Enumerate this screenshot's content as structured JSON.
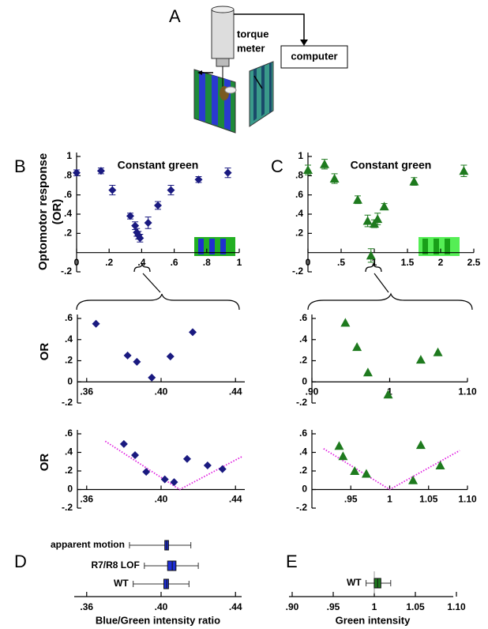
{
  "figure_a": {
    "label": "A",
    "torque": [
      "torque",
      "meter"
    ],
    "computer": "computer"
  },
  "chart_data": [
    {
      "type": "scatter",
      "panel": "B",
      "title": "Constant green",
      "ylabel": [
        "Optomotor response",
        "(OR)"
      ],
      "marker": "diamond",
      "color": "#1a1a80",
      "x": [
        0,
        0.15,
        0.22,
        0.33,
        0.36,
        0.37,
        0.38,
        0.39,
        0.44,
        0.5,
        0.58,
        0.75,
        0.93
      ],
      "values": [
        0.83,
        0.85,
        0.65,
        0.38,
        0.28,
        0.21,
        0.18,
        0.15,
        0.31,
        0.49,
        0.65,
        0.76,
        0.83
      ],
      "errors": [
        0.03,
        0.03,
        0.05,
        0.03,
        0.04,
        0.04,
        0.04,
        0.04,
        0.06,
        0.04,
        0.05,
        0.03,
        0.05
      ],
      "xlim": [
        0,
        1
      ],
      "xticks": [
        0,
        {
          "value": 0.2,
          "label": ".2"
        },
        {
          "value": 0.4,
          "label": ".4"
        },
        {
          "value": 0.6,
          "label": ".6"
        },
        {
          "value": 0.8,
          "label": ".8"
        },
        1
      ],
      "ylim": [
        -0.2,
        1
      ],
      "yticks": [
        1,
        {
          "value": 0.8,
          "label": ".8"
        },
        {
          "value": 0.6,
          "label": ".6"
        },
        {
          "value": 0.4,
          "label": ".4"
        },
        {
          "value": 0.2,
          "label": ".2"
        },
        {
          "value": -0.2,
          "label": "-.2"
        }
      ]
    },
    {
      "type": "scatter",
      "panel": "C",
      "title": "Constant green",
      "marker": "triangle",
      "color": "#1e7a1e",
      "x": [
        0,
        0.25,
        0.4,
        0.75,
        0.9,
        0.95,
        1.0,
        1.05,
        1.15,
        1.6,
        2.35
      ],
      "values": [
        0.86,
        0.92,
        0.77,
        0.55,
        0.33,
        -0.03,
        0.3,
        0.35,
        0.48,
        0.74,
        0.85
      ],
      "errors": [
        0.05,
        0.05,
        0.05,
        0.04,
        0.06,
        0.07,
        0.04,
        0.06,
        0.03,
        0.04,
        0.06
      ],
      "xlim": [
        0,
        2.5
      ],
      "xticks": [
        0,
        {
          "value": 0.5,
          "label": ".5"
        },
        1,
        1.5,
        2,
        2.5
      ],
      "ylim": [
        -0.2,
        1
      ],
      "yticks": [
        1,
        {
          "value": 0.8,
          "label": ".8"
        },
        {
          "value": 0.6,
          "label": ".6"
        },
        {
          "value": 0.4,
          "label": ".4"
        },
        {
          "value": 0.2,
          "label": ".2"
        },
        {
          "value": -0.2,
          "label": "-.2"
        }
      ]
    },
    {
      "type": "scatter",
      "ylabel": "OR",
      "marker": "diamond",
      "color": "#1a1a80",
      "x": [
        0.365,
        0.382,
        0.387,
        0.395,
        0.405,
        0.417
      ],
      "values": [
        0.55,
        0.25,
        0.19,
        0.04,
        0.24,
        0.47
      ],
      "xlim": [
        0.355,
        0.445
      ],
      "xticks": [
        {
          "value": 0.36,
          "label": ".36"
        },
        {
          "value": 0.4,
          "label": ".40"
        },
        {
          "value": 0.44,
          "label": ".44"
        }
      ],
      "ylim": [
        -0.2,
        0.6
      ],
      "yticks": [
        {
          "value": 0.6,
          "label": ".6"
        },
        {
          "value": 0.4,
          "label": ".4"
        },
        {
          "value": 0.2,
          "label": ".2"
        },
        0,
        {
          "value": -0.2,
          "label": "-.2"
        }
      ]
    },
    {
      "type": "scatter",
      "marker": "triangle",
      "color": "#1e7a1e",
      "x": [
        0.943,
        0.958,
        0.972,
        0.998,
        1.04,
        1.062
      ],
      "values": [
        0.56,
        0.33,
        0.09,
        -0.12,
        0.21,
        0.28
      ],
      "xlim": [
        0.9,
        1.1
      ],
      "xticks": [
        {
          "value": 0.9,
          "label": ".90"
        },
        1,
        {
          "value": 1.1,
          "label": "1.10"
        }
      ],
      "ylim": [
        -0.2,
        0.6
      ],
      "yticks": [
        {
          "value": 0.6,
          "label": ".6"
        },
        {
          "value": 0.4,
          "label": ".4"
        },
        {
          "value": 0.2,
          "label": ".2"
        },
        0,
        {
          "value": -0.2,
          "label": "-.2"
        }
      ]
    },
    {
      "type": "scatter",
      "ylabel": "OR",
      "marker": "diamond",
      "color": "#1a1a80",
      "x": [
        0.38,
        0.386,
        0.392,
        0.402,
        0.407,
        0.414,
        0.425,
        0.433
      ],
      "values": [
        0.49,
        0.37,
        0.19,
        0.11,
        0.08,
        0.33,
        0.26,
        0.22
      ],
      "fit": {
        "color": "#e020e0",
        "x": [
          0.37,
          0.41,
          0.444
        ],
        "values": [
          0.52,
          0,
          0.36
        ]
      },
      "xlim": [
        0.355,
        0.445
      ],
      "xticks": [
        {
          "value": 0.36,
          "label": ".36"
        },
        {
          "value": 0.4,
          "label": ".40"
        },
        {
          "value": 0.44,
          "label": ".44"
        }
      ],
      "ylim": [
        -0.2,
        0.6
      ],
      "yticks": [
        {
          "value": 0.6,
          "label": ".6"
        },
        {
          "value": 0.4,
          "label": ".4"
        },
        {
          "value": 0.2,
          "label": ".2"
        },
        0,
        {
          "value": -0.2,
          "label": "-.2"
        }
      ]
    },
    {
      "type": "scatter",
      "marker": "triangle",
      "color": "#1e7a1e",
      "x": [
        0.935,
        0.94,
        0.955,
        0.97,
        1.03,
        1.04,
        1.065
      ],
      "values": [
        0.47,
        0.36,
        0.2,
        0.17,
        0.1,
        0.48,
        0.26
      ],
      "fit": {
        "color": "#e020e0",
        "x": [
          0.915,
          1.0,
          1.09
        ],
        "values": [
          0.44,
          0,
          0.42
        ]
      },
      "xlim": [
        0.9,
        1.1
      ],
      "xticks": [
        {
          "value": 0.95,
          "label": ".95"
        },
        1,
        1.05,
        {
          "value": 1.1,
          "label": "1.10"
        }
      ],
      "ylim": [
        -0.2,
        0.6
      ],
      "yticks": [
        {
          "value": 0.6,
          "label": ".6"
        },
        {
          "value": 0.4,
          "label": ".4"
        },
        {
          "value": 0.2,
          "label": ".2"
        },
        0,
        {
          "value": -0.2,
          "label": "-.2"
        }
      ]
    },
    {
      "type": "box",
      "panel": "D",
      "xlabel": "Blue/Green intensity ratio",
      "color": "#1f2fd6",
      "categories": [
        "apparent motion",
        "R7/R8 LOF",
        "WT"
      ],
      "low": [
        0.383,
        0.391,
        0.385
      ],
      "q1": [
        0.402,
        0.4035,
        0.4015
      ],
      "median": [
        0.403,
        0.406,
        0.403
      ],
      "q3": [
        0.404,
        0.408,
        0.404
      ],
      "high": [
        0.416,
        0.42,
        0.415
      ],
      "xlim": [
        0.355,
        0.445
      ],
      "xticks": [
        {
          "value": 0.36,
          "label": ".36"
        },
        {
          "value": 0.4,
          "label": ".40"
        },
        {
          "value": 0.44,
          "label": ".44"
        }
      ]
    },
    {
      "type": "box",
      "panel": "E",
      "xlabel": "Green intensity",
      "color": "#1e7a1e",
      "refline": 1,
      "categories": [
        "WT"
      ],
      "low": [
        0.99
      ],
      "q1": [
        1.0
      ],
      "median": [
        1.004
      ],
      "q3": [
        1.008
      ],
      "high": [
        1.02
      ],
      "xlim": [
        0.9,
        1.1
      ],
      "xticks": [
        {
          "value": 0.9,
          "label": ".90"
        },
        {
          "value": 0.95,
          "label": ".95"
        },
        1,
        1.05,
        {
          "value": 1.1,
          "label": "1.10"
        }
      ]
    }
  ]
}
